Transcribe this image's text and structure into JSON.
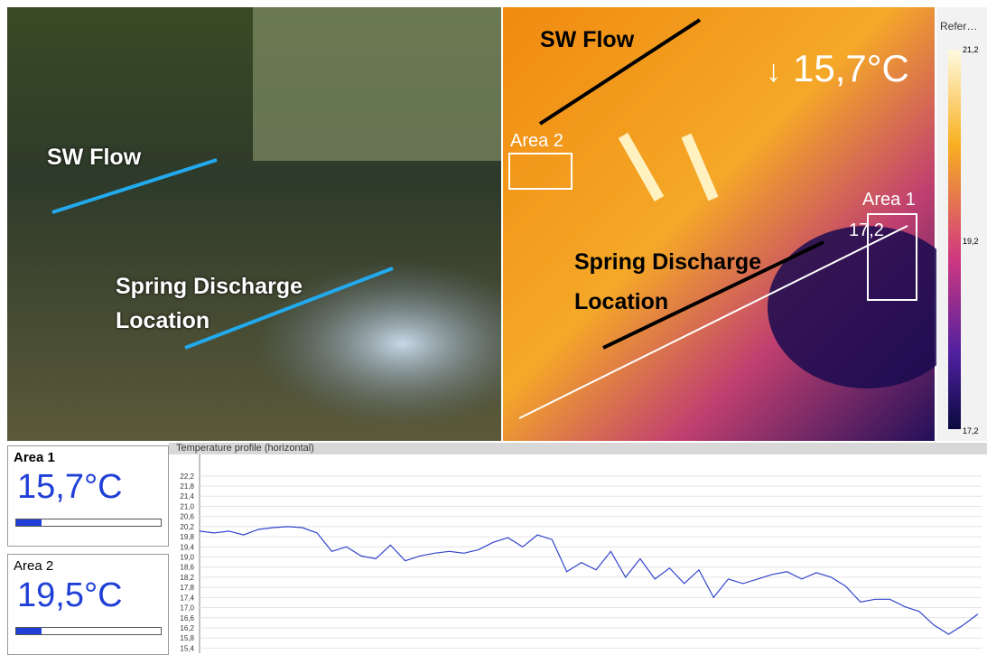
{
  "photo": {
    "labels": [
      "SW Flow",
      "Spring Discharge Location"
    ]
  },
  "thermal": {
    "labels": [
      "SW Flow",
      "Spring Discharge Location"
    ],
    "areas": [
      "Area 2",
      "Area 1"
    ],
    "area_value": "17,2",
    "reading": "15,7°C",
    "legend_title": "Refer…",
    "legend_ticks": [
      "21,2",
      "19,2",
      "17,2"
    ]
  },
  "panels": [
    {
      "name": "Area 1",
      "value": "15,7°C"
    },
    {
      "name": "Area 2",
      "value": "19,5°C"
    }
  ],
  "chart_data": {
    "type": "line",
    "title": "Temperature profile (horizontal)",
    "color": "#3344cc",
    "grid": true,
    "ylim": [
      15.2,
      22.8
    ],
    "yticks": [
      {
        "value": 22.2,
        "label": "22,2"
      },
      {
        "value": 21.8,
        "label": "21,8"
      },
      {
        "value": 21.4,
        "label": "21,4"
      },
      {
        "value": 21.0,
        "label": "21,0"
      },
      {
        "value": 20.6,
        "label": "20,6"
      },
      {
        "value": 20.2,
        "label": "20,2"
      },
      {
        "value": 19.8,
        "label": "19,8"
      },
      {
        "value": 19.4,
        "label": "19,4"
      },
      {
        "value": 19.0,
        "label": "19,0"
      },
      {
        "value": 18.6,
        "label": "18,6"
      },
      {
        "value": 18.2,
        "label": "18,2"
      },
      {
        "value": 17.8,
        "label": "17,8"
      },
      {
        "value": 17.4,
        "label": "17,4"
      },
      {
        "value": 17.0,
        "label": "17,0"
      },
      {
        "value": 16.6,
        "label": "16,6"
      },
      {
        "value": 16.2,
        "label": "16,2"
      },
      {
        "value": 15.8,
        "label": "15,8"
      },
      {
        "value": 15.4,
        "label": "15,4"
      }
    ],
    "values": [
      20.02,
      19.95,
      20.02,
      19.87,
      20.09,
      20.16,
      20.2,
      20.16,
      19.95,
      19.22,
      19.4,
      19.04,
      18.93,
      19.47,
      18.85,
      19.04,
      19.15,
      19.22,
      19.15,
      19.29,
      19.58,
      19.76,
      19.4,
      19.87,
      19.69,
      18.42,
      18.78,
      18.49,
      19.22,
      18.2,
      18.93,
      18.13,
      18.56,
      17.95,
      18.49,
      17.4,
      18.13,
      17.95,
      18.13,
      18.31,
      18.42,
      18.13,
      18.38,
      18.2,
      17.84,
      17.22,
      17.33,
      17.33,
      17.04,
      16.85,
      16.31,
      15.95,
      16.31,
      16.75
    ]
  }
}
